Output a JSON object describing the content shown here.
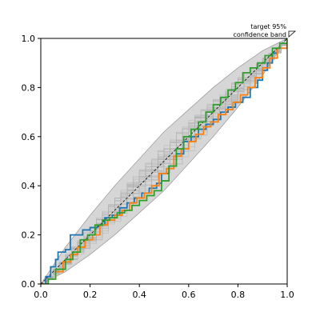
{
  "chart_data": {
    "type": "line",
    "title": "",
    "xlabel": "",
    "ylabel": "",
    "xlim": [
      0,
      1
    ],
    "ylim": [
      0,
      1
    ],
    "xticks": [
      "0.0",
      "0.2",
      "0.4",
      "0.6",
      "0.8",
      "1.0"
    ],
    "yticks": [
      "0.0",
      "0.2",
      "0.4",
      "0.6",
      "0.8",
      "1.0"
    ],
    "grid": false,
    "annotation": {
      "line1": "target 95%",
      "line2": "confidence band"
    },
    "band": {
      "color": "#c8c8c8",
      "lower": [
        [
          0,
          0
        ],
        [
          0.1,
          0.05
        ],
        [
          0.2,
          0.12
        ],
        [
          0.3,
          0.2
        ],
        [
          0.4,
          0.29
        ],
        [
          0.5,
          0.38
        ],
        [
          0.6,
          0.49
        ],
        [
          0.7,
          0.6
        ],
        [
          0.8,
          0.72
        ],
        [
          0.9,
          0.85
        ],
        [
          1,
          1
        ]
      ],
      "upper": [
        [
          0,
          0
        ],
        [
          0.1,
          0.15
        ],
        [
          0.2,
          0.28
        ],
        [
          0.3,
          0.4
        ],
        [
          0.4,
          0.51
        ],
        [
          0.5,
          0.62
        ],
        [
          0.6,
          0.71
        ],
        [
          0.7,
          0.8
        ],
        [
          0.8,
          0.88
        ],
        [
          0.9,
          0.95
        ],
        [
          1,
          1
        ]
      ]
    },
    "background_curves": {
      "count": 30,
      "color": "#b0b0b0"
    },
    "series": [
      {
        "color": "#1f77b4",
        "points": [
          [
            0,
            0
          ],
          [
            0.02,
            0.03
          ],
          [
            0.04,
            0.07
          ],
          [
            0.06,
            0.1
          ],
          [
            0.07,
            0.13
          ],
          [
            0.1,
            0.14
          ],
          [
            0.12,
            0.2
          ],
          [
            0.17,
            0.22
          ],
          [
            0.2,
            0.23
          ],
          [
            0.23,
            0.24
          ],
          [
            0.26,
            0.27
          ],
          [
            0.29,
            0.28
          ],
          [
            0.32,
            0.31
          ],
          [
            0.35,
            0.33
          ],
          [
            0.38,
            0.35
          ],
          [
            0.41,
            0.37
          ],
          [
            0.44,
            0.39
          ],
          [
            0.47,
            0.41
          ],
          [
            0.49,
            0.45
          ],
          [
            0.52,
            0.48
          ],
          [
            0.55,
            0.53
          ],
          [
            0.58,
            0.58
          ],
          [
            0.61,
            0.6
          ],
          [
            0.64,
            0.63
          ],
          [
            0.67,
            0.65
          ],
          [
            0.7,
            0.67
          ],
          [
            0.73,
            0.7
          ],
          [
            0.76,
            0.72
          ],
          [
            0.79,
            0.74
          ],
          [
            0.82,
            0.76
          ],
          [
            0.85,
            0.8
          ],
          [
            0.88,
            0.83
          ],
          [
            0.9,
            0.87
          ],
          [
            0.92,
            0.9
          ],
          [
            0.94,
            0.94
          ],
          [
            0.96,
            0.96
          ],
          [
            1,
            1
          ]
        ]
      },
      {
        "color": "#ff7f0e",
        "points": [
          [
            0,
            0
          ],
          [
            0.03,
            0.02
          ],
          [
            0.06,
            0.05
          ],
          [
            0.09,
            0.09
          ],
          [
            0.12,
            0.12
          ],
          [
            0.15,
            0.15
          ],
          [
            0.18,
            0.18
          ],
          [
            0.21,
            0.2
          ],
          [
            0.24,
            0.24
          ],
          [
            0.27,
            0.26
          ],
          [
            0.3,
            0.28
          ],
          [
            0.33,
            0.3
          ],
          [
            0.36,
            0.33
          ],
          [
            0.39,
            0.35
          ],
          [
            0.42,
            0.37
          ],
          [
            0.45,
            0.4
          ],
          [
            0.48,
            0.45
          ],
          [
            0.51,
            0.47
          ],
          [
            0.54,
            0.52
          ],
          [
            0.57,
            0.55
          ],
          [
            0.6,
            0.58
          ],
          [
            0.63,
            0.61
          ],
          [
            0.66,
            0.64
          ],
          [
            0.69,
            0.66
          ],
          [
            0.72,
            0.69
          ],
          [
            0.75,
            0.71
          ],
          [
            0.78,
            0.74
          ],
          [
            0.81,
            0.77
          ],
          [
            0.84,
            0.8
          ],
          [
            0.87,
            0.84
          ],
          [
            0.9,
            0.88
          ],
          [
            0.93,
            0.92
          ],
          [
            0.96,
            0.96
          ],
          [
            1,
            1
          ]
        ]
      },
      {
        "color": "#2ca02c",
        "points": [
          [
            0,
            0
          ],
          [
            0.03,
            0.02
          ],
          [
            0.06,
            0.06
          ],
          [
            0.1,
            0.1
          ],
          [
            0.13,
            0.13
          ],
          [
            0.16,
            0.18
          ],
          [
            0.19,
            0.2
          ],
          [
            0.22,
            0.24
          ],
          [
            0.25,
            0.26
          ],
          [
            0.28,
            0.27
          ],
          [
            0.31,
            0.29
          ],
          [
            0.34,
            0.3
          ],
          [
            0.37,
            0.32
          ],
          [
            0.4,
            0.34
          ],
          [
            0.43,
            0.36
          ],
          [
            0.46,
            0.38
          ],
          [
            0.49,
            0.42
          ],
          [
            0.52,
            0.48
          ],
          [
            0.55,
            0.55
          ],
          [
            0.58,
            0.6
          ],
          [
            0.61,
            0.63
          ],
          [
            0.64,
            0.66
          ],
          [
            0.67,
            0.7
          ],
          [
            0.7,
            0.73
          ],
          [
            0.73,
            0.76
          ],
          [
            0.76,
            0.79
          ],
          [
            0.79,
            0.82
          ],
          [
            0.82,
            0.86
          ],
          [
            0.85,
            0.88
          ],
          [
            0.88,
            0.9
          ],
          [
            0.91,
            0.93
          ],
          [
            0.94,
            0.96
          ],
          [
            0.97,
            0.98
          ],
          [
            1,
            1
          ]
        ]
      }
    ]
  }
}
